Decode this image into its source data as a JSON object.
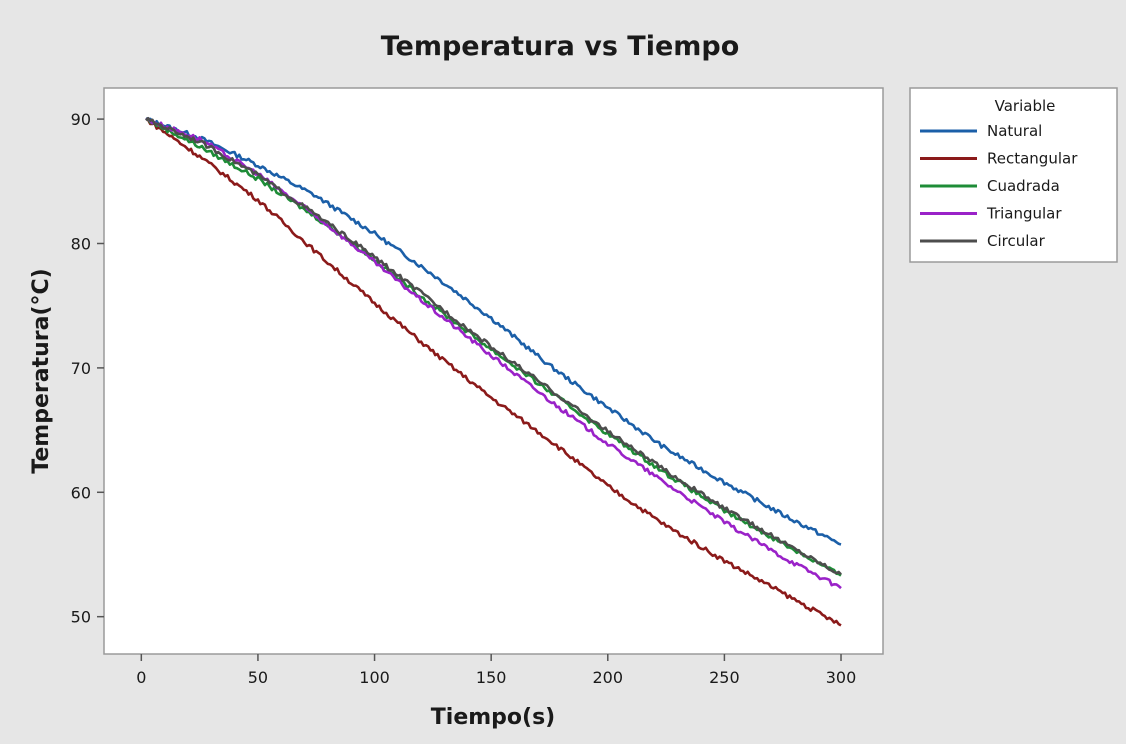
{
  "chart_data": {
    "type": "line",
    "title": "Temperatura vs Tiempo",
    "xlabel": "Tiempo(s)",
    "ylabel": "Temperatura(°C)",
    "xlim": [
      -16,
      318
    ],
    "ylim": [
      47,
      92.5
    ],
    "xticks": [
      0,
      50,
      100,
      150,
      200,
      250,
      300
    ],
    "yticks": [
      50,
      60,
      70,
      80,
      90
    ],
    "grid": false,
    "legend": {
      "title": "Variable",
      "placement": "right"
    },
    "series": [
      {
        "name": "Natural",
        "color": "#1b5fa8",
        "x": [
          2,
          25,
          50,
          75,
          100,
          125,
          150,
          175,
          200,
          225,
          250,
          275,
          300
        ],
        "y": [
          90.0,
          88.5,
          86.3,
          83.8,
          80.8,
          77.5,
          74.0,
          70.2,
          66.8,
          63.5,
          60.8,
          58.2,
          55.8
        ]
      },
      {
        "name": "Rectangular",
        "color": "#8b1a1a",
        "x": [
          2,
          25,
          50,
          75,
          100,
          125,
          150,
          175,
          200,
          225,
          250,
          275,
          300
        ],
        "y": [
          90.0,
          87.0,
          83.5,
          79.3,
          75.2,
          71.3,
          67.6,
          64.2,
          60.5,
          57.3,
          54.5,
          51.9,
          49.3
        ]
      },
      {
        "name": "Cuadrada",
        "color": "#1e8c37",
        "x": [
          2,
          25,
          50,
          75,
          100,
          125,
          150,
          175,
          200,
          225,
          250,
          275,
          300
        ],
        "y": [
          90.0,
          87.8,
          85.2,
          82.1,
          78.7,
          75.0,
          71.5,
          68.1,
          64.7,
          61.5,
          58.5,
          55.9,
          53.3
        ]
      },
      {
        "name": "Triangular",
        "color": "#9a22c8",
        "x": [
          2,
          25,
          50,
          75,
          100,
          125,
          150,
          175,
          200,
          225,
          250,
          275,
          300
        ],
        "y": [
          90.0,
          88.4,
          85.6,
          82.2,
          78.5,
          74.7,
          71.0,
          67.4,
          63.9,
          60.7,
          57.6,
          54.8,
          52.3
        ]
      },
      {
        "name": "Circular",
        "color": "#4d4d4d",
        "x": [
          2,
          25,
          50,
          75,
          100,
          125,
          150,
          175,
          200,
          225,
          250,
          275,
          300
        ],
        "y": [
          90.0,
          88.2,
          85.5,
          82.3,
          78.9,
          75.3,
          71.7,
          68.3,
          64.9,
          61.7,
          58.7,
          56.0,
          53.4
        ]
      }
    ]
  }
}
